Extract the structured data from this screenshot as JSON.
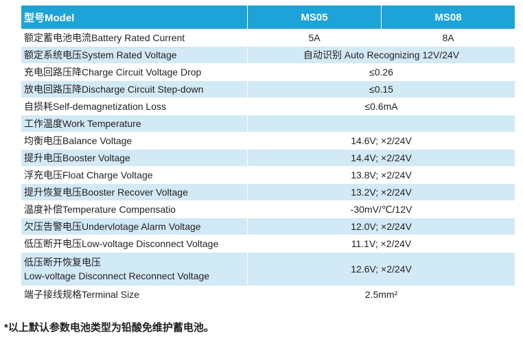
{
  "table": {
    "header": {
      "label": "型号Model",
      "col1": "MS05",
      "col2": "MS08"
    },
    "rows": [
      {
        "label": "额定蓄电池电流Battery Rated Current",
        "v1": "5A",
        "v2": "8A"
      },
      {
        "label": "额定系统电压System Rated Voltage",
        "value": "自动识别 Auto Recognizing  12V/24V"
      },
      {
        "label": "充电回路压降Charge Circuit Voltage Drop",
        "value": "≤0.26"
      },
      {
        "label": "放电回路压降Discharge Circuit Step-down",
        "value": "≤0.15"
      },
      {
        "label": "自损耗Self-demagnetization Loss",
        "value": "≤0.6mA"
      },
      {
        "label": "工作温度Work Temperature",
        "value": ""
      },
      {
        "label": "均衡电压Balance Voltage",
        "value": "14.6V; ×2/24V"
      },
      {
        "label": "提升电压Booster Voltage",
        "value": "14.4V; ×2/24V"
      },
      {
        "label": "浮充电压Float Charge Voltage",
        "value": "13.8V; ×2/24V"
      },
      {
        "label": "提升恢复电压Booster Recover Voltage",
        "value": "13.2V; ×2/24V"
      },
      {
        "label": "温度补偿Temperature Compensatio",
        "value": "-30mV/℃/12V"
      },
      {
        "label": "欠压告警电压Undervlotage Alarm Voltage",
        "value": "12.0V; ×2/24V"
      },
      {
        "label": "低压断开电压Low-voltage Disconnect Voltage",
        "value": "11.1V; ×2/24V"
      },
      {
        "label_line1": "低压断开恢复电压",
        "label_line2": "Low-voltage Disconnect Reconnect Voltage",
        "value": "12.6V; ×2/24V"
      },
      {
        "label": "端子接线规格Terminal Size",
        "value": "2.5mm²"
      }
    ]
  },
  "footnote": "*以上默认参数电池类型为铅酸免维护蓄电池。",
  "colors": {
    "header_bg": "#1ea3d9",
    "row_alt_bg": "#d2e9f6",
    "text": "#231f20"
  }
}
